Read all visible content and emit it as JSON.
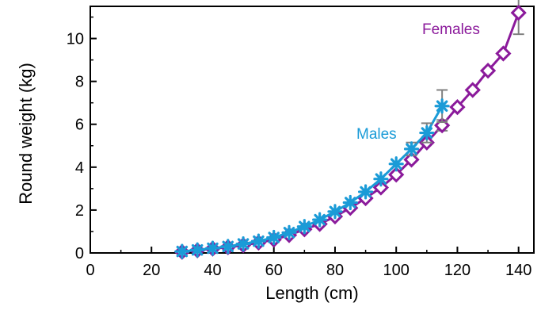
{
  "chart_data": {
    "type": "line",
    "xlabel": "Length (cm)",
    "ylabel": "Round weight (kg)",
    "xlim": [
      0,
      145
    ],
    "ylim": [
      0,
      11.5
    ],
    "xticks": [
      0,
      20,
      40,
      60,
      80,
      100,
      120,
      140
    ],
    "yticks": [
      0,
      2,
      4,
      6,
      8,
      10
    ],
    "grid": false,
    "legend": "inline labels near curves",
    "series": [
      {
        "name": "Females",
        "color": "#8b1a9b",
        "marker": "diamond",
        "x": [
          30,
          35,
          40,
          45,
          50,
          55,
          60,
          65,
          70,
          75,
          80,
          85,
          90,
          95,
          100,
          105,
          110,
          115,
          120,
          125,
          130,
          135,
          140
        ],
        "y": [
          0.05,
          0.12,
          0.2,
          0.27,
          0.36,
          0.48,
          0.62,
          0.83,
          1.1,
          1.35,
          1.7,
          2.1,
          2.55,
          3.05,
          3.65,
          4.35,
          5.15,
          5.95,
          6.8,
          7.6,
          8.5,
          9.3,
          11.2
        ],
        "error": [
          0,
          0,
          0,
          0,
          0,
          0,
          0,
          0,
          0,
          0,
          0,
          0,
          0,
          0,
          0,
          0,
          0,
          0.25,
          0,
          0,
          0,
          0,
          1.0
        ]
      },
      {
        "name": "Males",
        "color": "#1a9bd7",
        "marker": "asterisk",
        "x": [
          30,
          35,
          40,
          45,
          50,
          55,
          60,
          65,
          70,
          75,
          80,
          85,
          90,
          95,
          100,
          105,
          110,
          115
        ],
        "y": [
          0.07,
          0.14,
          0.22,
          0.3,
          0.42,
          0.55,
          0.72,
          0.95,
          1.23,
          1.55,
          1.93,
          2.35,
          2.85,
          3.45,
          4.15,
          4.85,
          5.6,
          6.85
        ],
        "error": [
          0,
          0,
          0,
          0,
          0,
          0,
          0,
          0,
          0,
          0,
          0,
          0,
          0,
          0,
          0,
          0.3,
          0.45,
          0.75
        ]
      }
    ]
  }
}
